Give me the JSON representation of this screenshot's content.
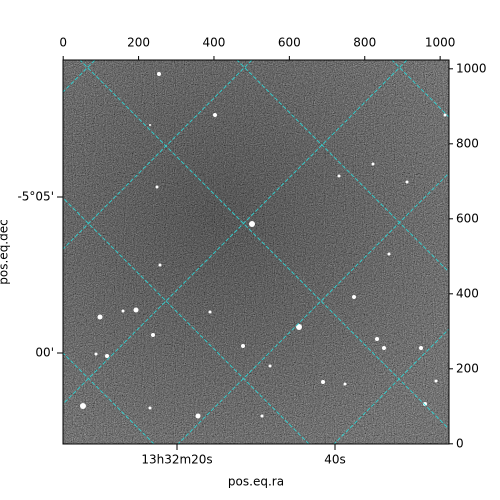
{
  "chart_data": {
    "type": "image",
    "xlabel": "pos.eq.ra",
    "ylabel": "pos.eq.dec",
    "xlim": [
      -0.5,
      1023.5
    ],
    "xticks": [
      0,
      200,
      400,
      600,
      800,
      1000
    ],
    "ylim": [
      -0.5,
      1023.5
    ],
    "yticks": [
      0,
      200,
      400,
      600,
      800,
      1000
    ],
    "world_xticks": [
      "13h32m20s",
      "40s"
    ],
    "world_yticks": [
      "-5°05'",
      "00'"
    ],
    "grid": true,
    "grid_color": "#2fd3d3"
  }
}
